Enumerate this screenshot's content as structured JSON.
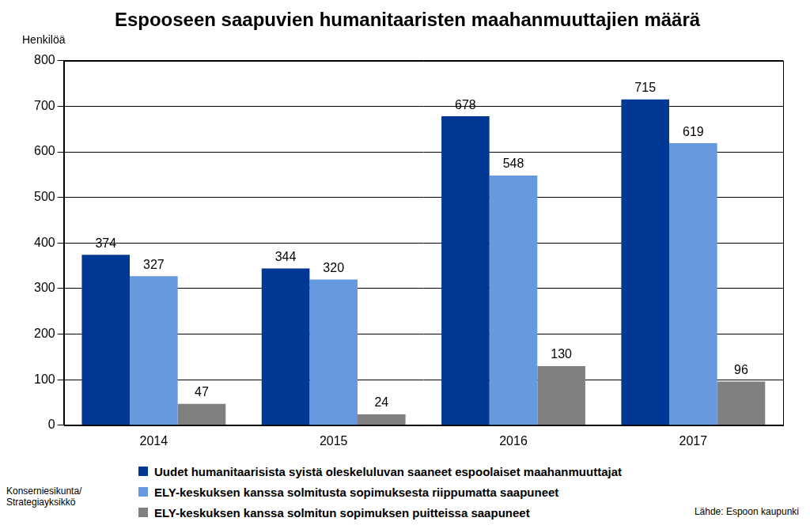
{
  "chart_data": {
    "type": "bar",
    "title": "Espooseen saapuvien humanitaaristen maahanmuuttajien määrä",
    "y_label": "Henkilöä",
    "categories": [
      "2014",
      "2015",
      "2016",
      "2017"
    ],
    "series": [
      {
        "name": "Uudet humanitaarisista syistä oleskeluluvan saaneet espoolaiset maahanmuuttajat",
        "color": "#003893",
        "values": [
          374,
          344,
          678,
          715
        ]
      },
      {
        "name": "ELY-keskuksen kanssa solmitusta sopimuksesta riippumatta saapuneet",
        "color": "#6699dd",
        "values": [
          327,
          320,
          548,
          619
        ]
      },
      {
        "name": "ELY-keskuksen kanssa solmitun sopimuksen puitteissa saapuneet",
        "color": "#808080",
        "values": [
          47,
          24,
          130,
          96
        ]
      }
    ],
    "ylim": [
      0,
      800
    ],
    "yticks": [
      0,
      100,
      200,
      300,
      400,
      500,
      600,
      700,
      800
    ],
    "grid": true,
    "data_labels": true,
    "legend": "bottom",
    "annotations": [
      "Konserniesikunta/\nStrategiayksikkö",
      "Lähde: Espoon kaupunki"
    ]
  }
}
